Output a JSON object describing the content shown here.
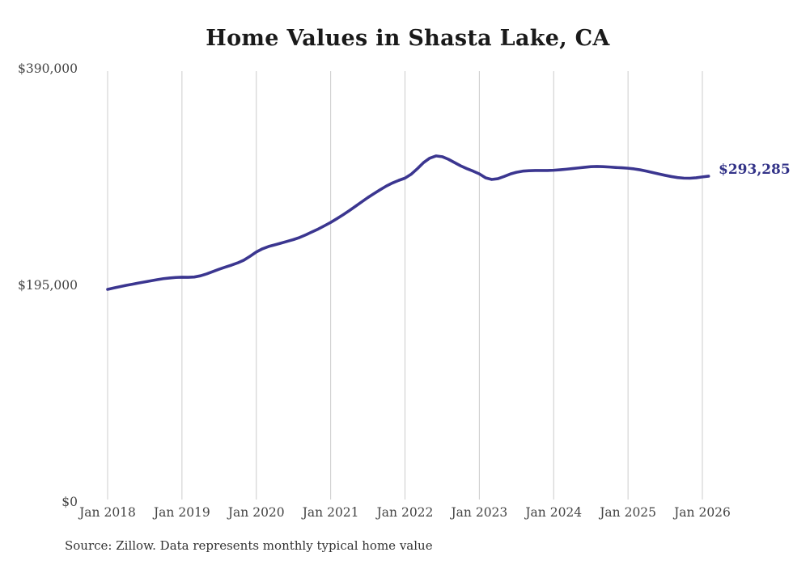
{
  "source_note": "Source: Zillow. Data represents monthly typical home value",
  "chart_data": {
    "type": "line",
    "title": "Home Values in Shasta Lake, CA",
    "xlabel": "",
    "ylabel": "",
    "ylim": [
      0,
      390000
    ],
    "grid": "vertical-only",
    "grid_color": "#cccccc",
    "background_color": "#ffffff",
    "line_color": "#3b3690",
    "end_label_color": "#333388",
    "tick_color": "#444444",
    "x_start": "2018-01",
    "x_interval": "1 month",
    "x_end": "2026-02",
    "x_tick_labels": [
      "Jan 2018",
      "Jan 2019",
      "Jan 2020",
      "Jan 2021",
      "Jan 2022",
      "Jan 2023",
      "Jan 2024",
      "Jan 2025",
      "Jan 2026"
    ],
    "y_ticks": [
      {
        "label": "$390,000",
        "value": 390000
      },
      {
        "label": "$195,000",
        "value": 195000
      },
      {
        "label": "$0",
        "value": 0
      }
    ],
    "end_label": "$293,285",
    "end_value": 293285,
    "series": [
      {
        "name": "Monthly typical home value",
        "values": [
          191400,
          192600,
          193800,
          195000,
          196000,
          197100,
          198100,
          199100,
          200100,
          201000,
          201600,
          202100,
          202300,
          202200,
          202500,
          203600,
          205300,
          207400,
          209500,
          211400,
          213200,
          215200,
          217700,
          221200,
          225000,
          227900,
          230000,
          231500,
          233000,
          234600,
          236200,
          238100,
          240500,
          243100,
          245700,
          248600,
          251600,
          255000,
          258500,
          262200,
          266100,
          270100,
          274000,
          277600,
          281100,
          284400,
          287200,
          289500,
          291500,
          295000,
          300000,
          305500,
          309500,
          311500,
          310800,
          308500,
          305500,
          302500,
          300000,
          297800,
          295300,
          291800,
          290300,
          291000,
          293000,
          295200,
          296800,
          297800,
          298200,
          298400,
          298400,
          298400,
          298600,
          299000,
          299500,
          300100,
          300700,
          301300,
          301800,
          302000,
          301800,
          301500,
          301100,
          300800,
          300400,
          299800,
          298900,
          297800,
          296500,
          295200,
          294000,
          292900,
          292000,
          291500,
          291400,
          291800,
          292600,
          293285
        ]
      }
    ]
  }
}
